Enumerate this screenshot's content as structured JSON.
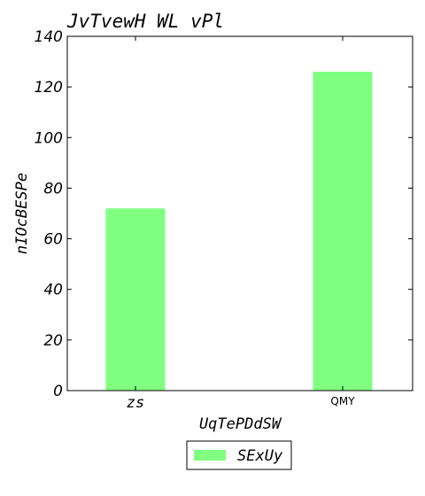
{
  "chart_data": {
    "type": "bar",
    "title": "JvTvewH WL vPl",
    "xlabel": "UqTePDdSW",
    "ylabel": "nIOcBESPe",
    "categories": [
      "zs",
      "QMY"
    ],
    "series": [
      {
        "name": "SExUy",
        "values": [
          72,
          126
        ],
        "color": "#80ff80"
      }
    ],
    "ylim": [
      0,
      140
    ],
    "yticks": [
      0,
      20,
      40,
      60,
      80,
      100,
      120,
      140
    ],
    "grid": false,
    "legend_position": "bottom-center"
  }
}
